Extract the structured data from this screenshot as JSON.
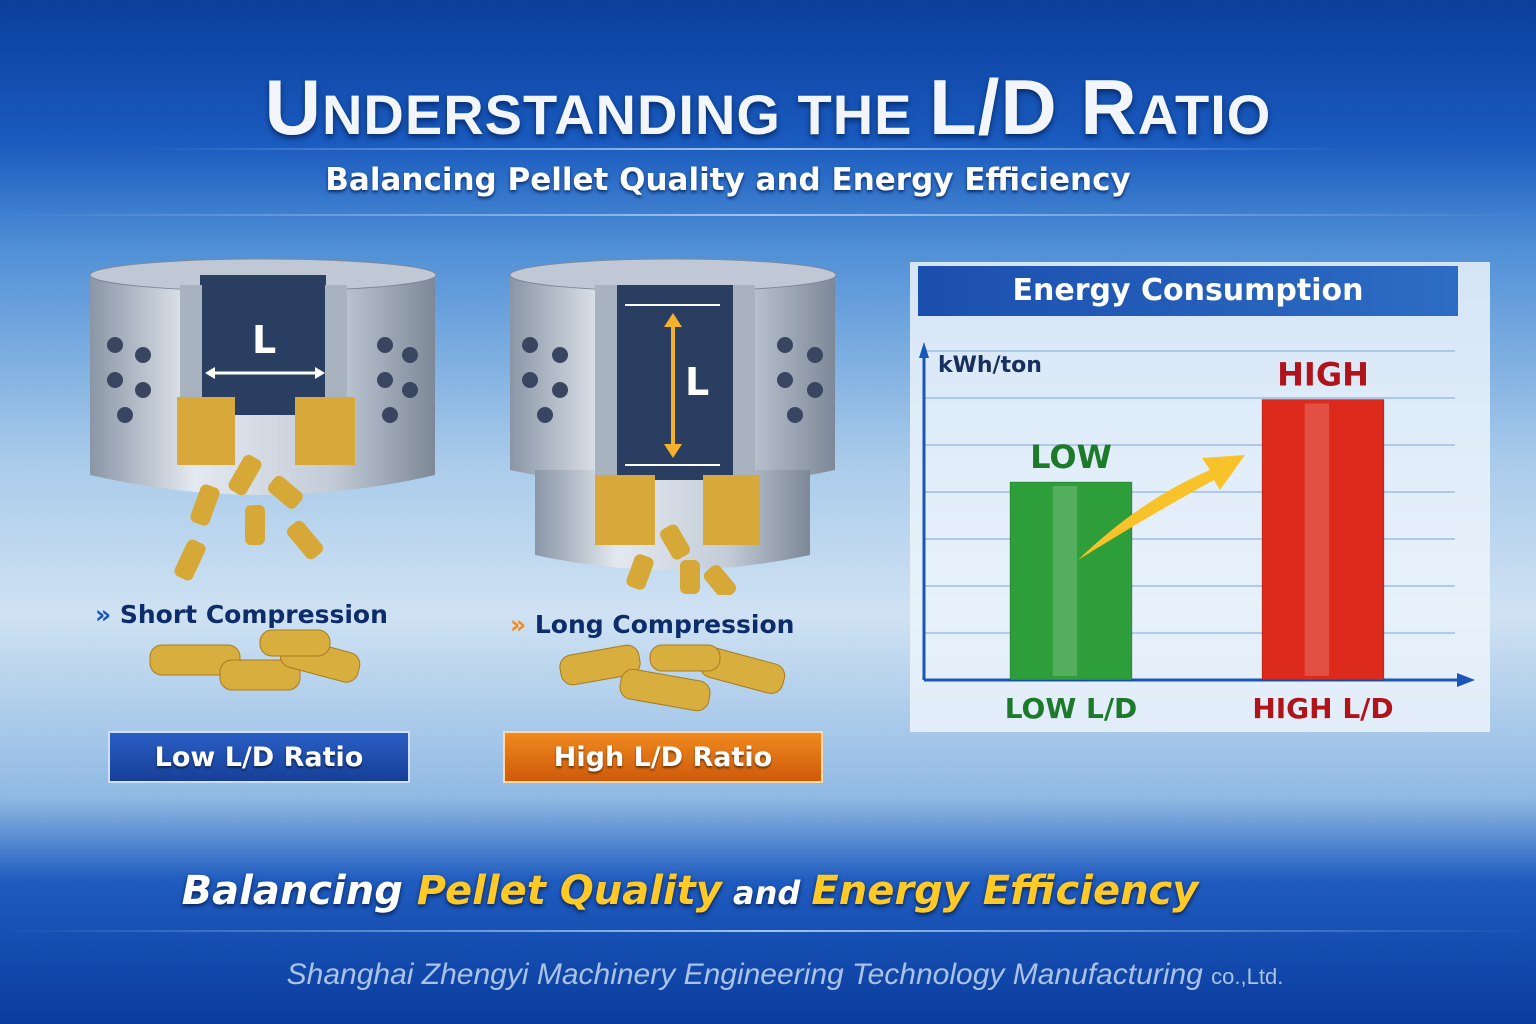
{
  "header": {
    "title_parts": [
      "U",
      "NDERSTANDING ",
      "THE ",
      "L/D R",
      "ATIO"
    ],
    "subtitle": "Balancing Pellet Quality and Energy Efficiency"
  },
  "dies": [
    {
      "length_label": "L",
      "caption": "Short Compression",
      "ratio_label": "Low L/D Ratio",
      "ratio_color": "#1a4aa8"
    },
    {
      "length_label": "L",
      "caption": "Long Compression",
      "ratio_label": "High L/D Ratio",
      "ratio_color": "#e0660e"
    }
  ],
  "chart_data": {
    "type": "bar",
    "title": "Energy Consumption",
    "ylabel": "kWh/ton",
    "categories": [
      "LOW L/D",
      "HIGH L/D"
    ],
    "data_labels": [
      "LOW",
      "HIGH"
    ],
    "values": [
      0.6,
      0.85
    ],
    "value_scale": "relative (fraction of axis height, no numeric ticks)",
    "colors": [
      "#2e9e3a",
      "#dc2a1c"
    ],
    "label_colors": [
      "#1d7a2a",
      "#b0141a"
    ],
    "arrow_color": "#f7c22a",
    "grid": true
  },
  "tagline": {
    "parts": [
      "Balancing ",
      "Pellet Quality",
      " and ",
      "Energy Efficiency"
    ]
  },
  "footer": {
    "company": "Shanghai Zhengyi Machinery Engineering Technology Manufacturing ",
    "suffix": "co.,Ltd."
  }
}
